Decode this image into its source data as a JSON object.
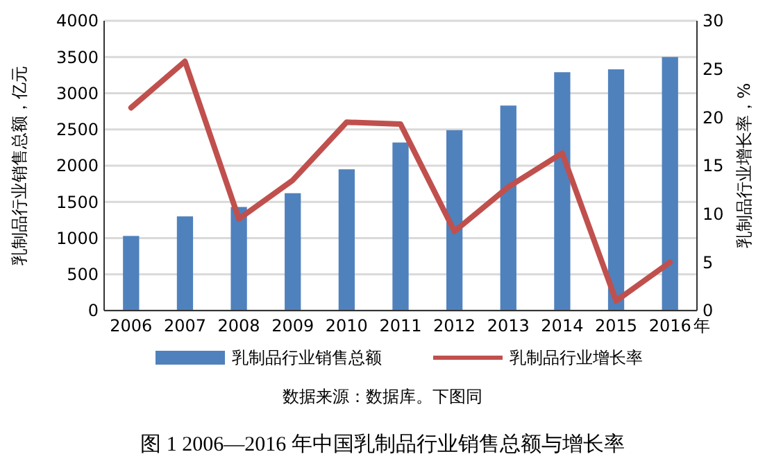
{
  "chart_data": {
    "type": "bar",
    "title": "图 1  2006—2016 年中国乳制品行业销售总额与增长率",
    "categories": [
      "2006",
      "2007",
      "2008",
      "2009",
      "2010",
      "2011",
      "2012",
      "2013",
      "2014",
      "2015",
      "2016"
    ],
    "xlabel": "年",
    "ylabel": "乳制品行业销售总额，亿元",
    "y2label": "乳制品行业增长率，%",
    "series": [
      {
        "name": "乳制品行业销售总额",
        "color": "#4f81bd",
        "values": [
          1030,
          1300,
          1430,
          1620,
          1950,
          2320,
          2490,
          2830,
          3290,
          3330,
          3500
        ]
      },
      {
        "name": "乳制品行业增长率",
        "type": "line",
        "axis": "y2",
        "color": "#c0504d",
        "values": [
          21,
          25.8,
          9.5,
          13.5,
          19.5,
          19.3,
          8.2,
          12.8,
          16.3,
          1,
          5
        ]
      }
    ],
    "ylim": [
      0,
      4000
    ],
    "yticks": [
      0,
      500,
      1000,
      1500,
      2000,
      2500,
      3000,
      3500,
      4000
    ],
    "y2lim": [
      0,
      30
    ],
    "y2ticks": [
      0,
      5,
      10,
      15,
      20,
      25,
      30
    ],
    "grid": "y",
    "legend": "bottom",
    "annotations": [
      "数据来源：数据库。下图同"
    ]
  }
}
